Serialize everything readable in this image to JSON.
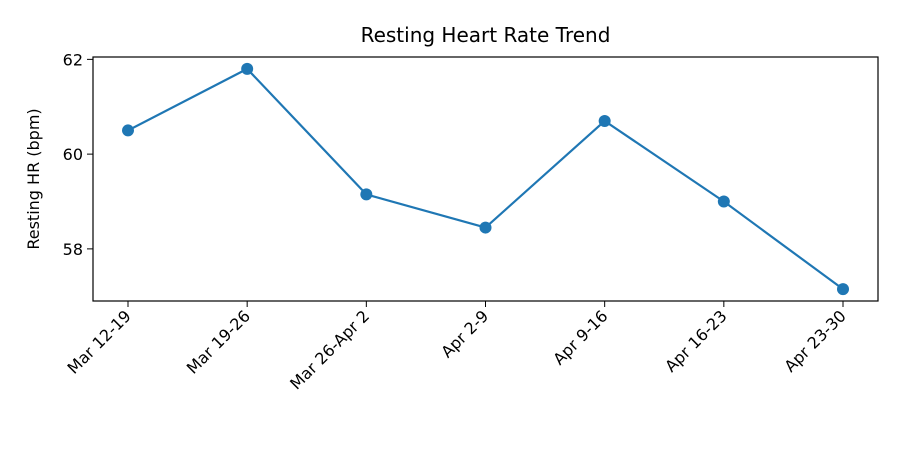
{
  "chart_data": {
    "type": "line",
    "title": "Resting Heart Rate Trend",
    "xlabel": "",
    "ylabel": "Resting HR (bpm)",
    "categories": [
      "Mar 12-19",
      "Mar 19-26",
      "Mar 26-Apr 2",
      "Apr 2-9",
      "Apr 9-16",
      "Apr 16-23",
      "Apr 23-30"
    ],
    "series": [
      {
        "values": [
          60.5,
          61.8,
          59.15,
          58.45,
          60.7,
          59.0,
          57.15
        ]
      }
    ],
    "ylim": [
      56.9,
      62.05
    ],
    "yticks": [
      58,
      60,
      62
    ],
    "grid": false,
    "legend": "none",
    "colors": {
      "line": "#1f77b4",
      "marker": "#1f77b4",
      "axis": "#000000"
    }
  }
}
